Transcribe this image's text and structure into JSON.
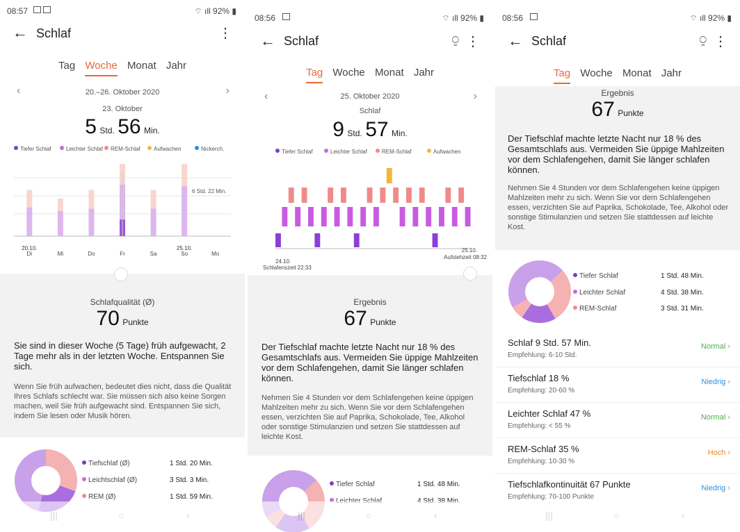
{
  "screen1": {
    "status": {
      "time": "08:57",
      "battery": "92%"
    },
    "title": "Schlaf",
    "tabs": [
      "Tag",
      "Woche",
      "Monat",
      "Jahr"
    ],
    "active_tab": "Woche",
    "range": "20.–26. Oktober 2020",
    "selected_day": "23. Oktober",
    "hours": "5",
    "hours_unit": "Std.",
    "minutes": "56",
    "minutes_unit": "Min.",
    "legend": [
      {
        "label": "Tiefer Schlaf",
        "color": "#7a3fc9"
      },
      {
        "label": "Leichter Schlaf",
        "color": "#c36ce0"
      },
      {
        "label": "REM-Schlaf",
        "color": "#f08a8a"
      },
      {
        "label": "Aufwachen",
        "color": "#f2b63a"
      },
      {
        "label": "Nickerch.",
        "color": "#2e8fe0"
      }
    ],
    "chart_annotation": "6 Std. 22 Min.",
    "date_labels": {
      "start": "20.10.",
      "end": "25.10."
    },
    "quality_label": "Schlafqualität (Ø)",
    "quality_value": "70",
    "quality_unit": "Punkte",
    "heading": "Sie sind in dieser Woche (5 Tage) früh aufgewacht, 2 Tage mehr als in der letzten Woche. Entspannen Sie sich.",
    "paragraph": "Wenn Sie früh aufwachen, bedeutet dies nicht, dass die Qualität Ihres Schlafs schlecht war. Sie müssen sich also keine Sorgen machen, weil Sie früh aufgewacht sind. Entspannen Sie sich, indem Sie lesen oder Musik hören.",
    "avg": [
      {
        "label": "Tiefschlaf (Ø)",
        "value": "1 Std. 20 Min.",
        "color": "#7a3fc9"
      },
      {
        "label": "Leichtschlaf (Ø)",
        "value": "3 Std. 3 Min.",
        "color": "#c36ce0"
      },
      {
        "label": "REM (Ø)",
        "value": "1 Std. 59 Min.",
        "color": "#f08a8a"
      }
    ]
  },
  "screen2": {
    "status": {
      "time": "08:56",
      "battery": "92%"
    },
    "title": "Schlaf",
    "tabs": [
      "Tag",
      "Woche",
      "Monat",
      "Jahr"
    ],
    "active_tab": "Tag",
    "date": "25. Oktober 2020",
    "sublabel": "Schlaf",
    "hours": "9",
    "hours_unit": "Std.",
    "minutes": "57",
    "minutes_unit": "Min.",
    "legend": [
      {
        "label": "Tiefer Schlaf",
        "color": "#7a3fc9"
      },
      {
        "label": "Leichter Schlaf",
        "color": "#c36ce0"
      },
      {
        "label": "REM-Schlaf",
        "color": "#f08a8a"
      },
      {
        "label": "Aufwachen",
        "color": "#f2b63a"
      }
    ],
    "start_date": "24.10.",
    "start_label": "Schlafenszeit 22:33",
    "end_date": "25.10.",
    "end_label": "Aufstehzeit 08:32",
    "result_label": "Ergebnis",
    "result_value": "67",
    "result_unit": "Punkte",
    "heading": "Der Tiefschlaf machte letzte Nacht nur 18 % des Gesamtschlafs aus. Vermeiden Sie üppige Mahlzeiten vor dem Schlafengehen, damit Sie länger schlafen können.",
    "paragraph": "Nehmen Sie 4 Stunden vor dem Schlafengehen keine üppigen Mahlzeiten mehr zu sich. Wenn Sie vor dem Schlafengehen essen, verzichten Sie auf Paprika, Schokolade, Tee, Alkohol oder sonstige Stimulanzien und setzen Sie stattdessen auf leichte Kost.",
    "donut_rows": [
      {
        "label": "Tiefer Schlaf",
        "value": "1 Std. 48 Min.",
        "color": "#7a3fc9"
      },
      {
        "label": "Leichter Schlaf",
        "value": "4 Std. 38 Min.",
        "color": "#c36ce0"
      }
    ]
  },
  "screen3": {
    "status": {
      "time": "08:56",
      "battery": "92%"
    },
    "title": "Schlaf",
    "tabs": [
      "Tag",
      "Woche",
      "Monat",
      "Jahr"
    ],
    "active_tab": "Tag",
    "result_label": "Ergebnis",
    "result_value": "67",
    "result_unit": "Punkte",
    "heading": "Der Tiefschlaf machte letzte Nacht nur 18 % des Gesamtschlafs aus. Vermeiden Sie üppige Mahlzeiten vor dem Schlafengehen, damit Sie länger schlafen können.",
    "paragraph": "Nehmen Sie 4 Stunden vor dem Schlafengehen keine üppigen Mahlzeiten mehr zu sich. Wenn Sie vor dem Schlafengehen essen, verzichten Sie auf Paprika, Schokolade, Tee, Alkohol oder sonstige Stimulanzien und setzen Sie stattdessen auf leichte Kost.",
    "donut_rows": [
      {
        "label": "Tiefer Schlaf",
        "value": "1 Std. 48 Min.",
        "color": "#7a3fc9"
      },
      {
        "label": "Leichter Schlaf",
        "value": "4 Std. 38 Min.",
        "color": "#c36ce0"
      },
      {
        "label": "REM-Schlaf",
        "value": "3 Std. 31 Min.",
        "color": "#f08a8a"
      }
    ],
    "metrics": [
      {
        "title": "Schlaf  9 Std. 57 Min.",
        "sub": "Empfehlung: 6-10 Std.",
        "status": "Normal",
        "color": "#4caf50"
      },
      {
        "title": "Tiefschlaf  18 %",
        "sub": "Empfehlung: 20-60 %",
        "status": "Niedrig",
        "color": "#2e8fe0"
      },
      {
        "title": "Leichter Schlaf  47 %",
        "sub": "Empfehlung: < 55 %",
        "status": "Normal",
        "color": "#4caf50"
      },
      {
        "title": "REM-Schlaf  35 %",
        "sub": "Empfehlung: 10-30 %",
        "status": "Hoch",
        "color": "#e8892a"
      },
      {
        "title": "Tiefschlafkontinuität  67 Punkte",
        "sub": "Empfehlung: 70-100 Punkte",
        "status": "Niedrig",
        "color": "#2e8fe0"
      }
    ]
  },
  "chart_data": [
    {
      "type": "bar",
      "title": "20.–26. Oktober 2020",
      "categories": [
        "Di",
        "Mi",
        "Do",
        "Fr",
        "Sa",
        "So",
        "Mo"
      ],
      "series": [
        {
          "name": "Tiefer Schlaf",
          "values": [
            null,
            null,
            null,
            1.33,
            null,
            null,
            null
          ]
        },
        {
          "name": "Leichter Schlaf",
          "values": [
            2.3,
            2.0,
            2.2,
            2.8,
            2.2,
            4.0,
            null
          ]
        },
        {
          "name": "REM-Schlaf",
          "values": [
            1.4,
            1.0,
            1.5,
            1.9,
            1.5,
            2.4,
            null
          ]
        },
        {
          "name": "Aufwachen",
          "values": [
            null,
            null,
            null,
            0.2,
            null,
            null,
            null
          ]
        }
      ],
      "ylabel": "",
      "ylim": [
        0,
        8
      ],
      "annotation": "6 Std. 22 Min.",
      "grid": true
    },
    {
      "type": "bar",
      "title": "25. Oktober 2020",
      "categories": [
        "Tiefer Schlaf",
        "Leichter Schlaf",
        "REM-Schlaf"
      ],
      "values": [
        1.8,
        4.63,
        3.52
      ],
      "xlabel": "",
      "ylabel": ""
    }
  ]
}
